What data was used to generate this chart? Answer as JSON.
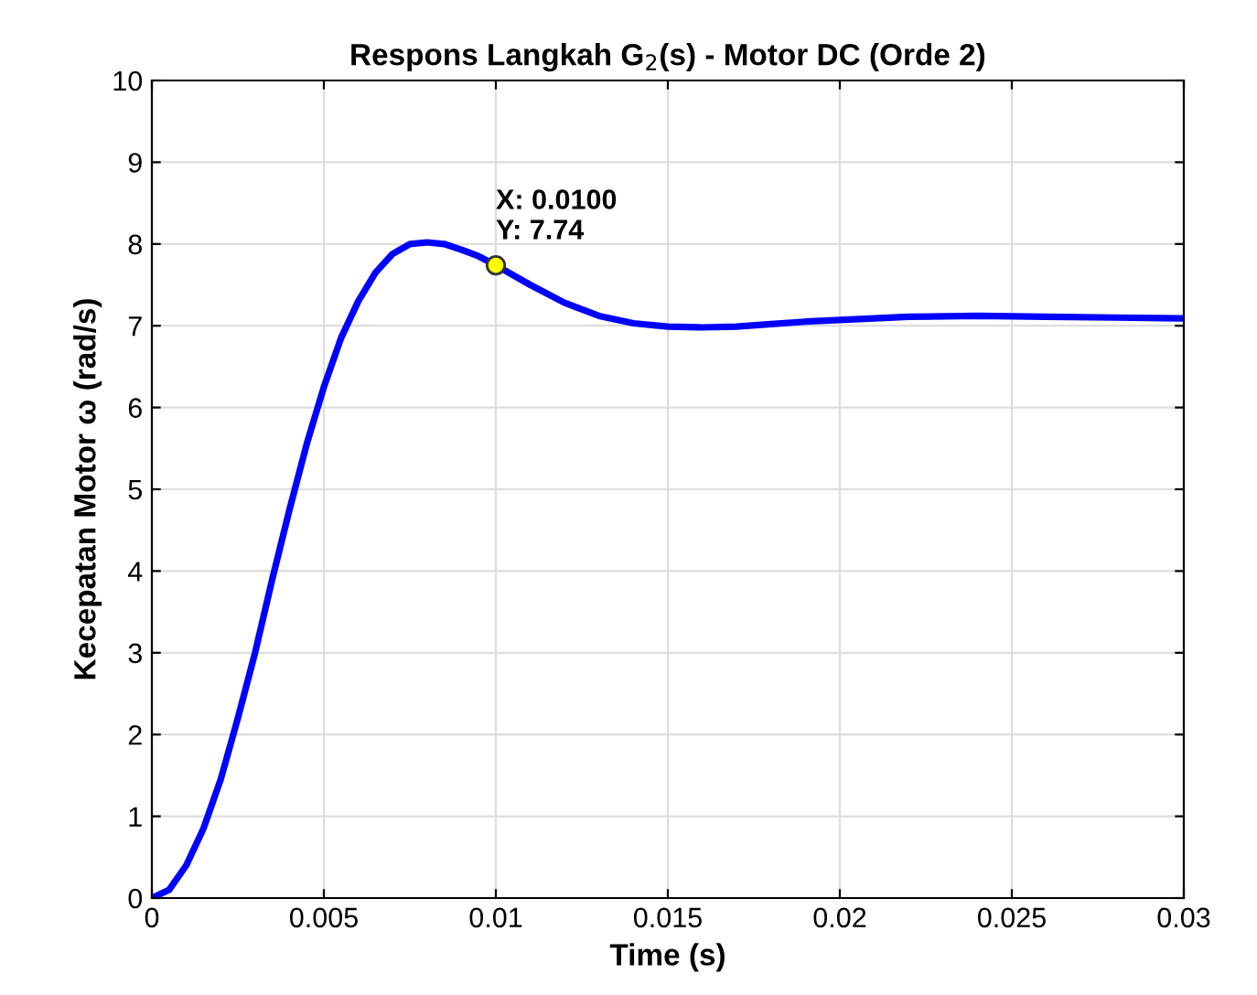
{
  "chart_data": {
    "type": "line",
    "title": "Respons Langkah G$_{2}$(s) - Motor DC (Orde 2)",
    "xlabel": "Time (s)",
    "ylabel": "Kecepatan Motor ω (rad/s)",
    "x": [
      0,
      0.0005,
      0.001,
      0.0015,
      0.002,
      0.0025,
      0.003,
      0.0035,
      0.004,
      0.0045,
      0.005,
      0.0055,
      0.006,
      0.0065,
      0.007,
      0.0075,
      0.008,
      0.0085,
      0.009,
      0.0095,
      0.01,
      0.011,
      0.012,
      0.013,
      0.014,
      0.015,
      0.016,
      0.017,
      0.018,
      0.019,
      0.02,
      0.022,
      0.024,
      0.026,
      0.028,
      0.03
    ],
    "series": [
      {
        "color": "#0000ff",
        "values": [
          0,
          0.1,
          0.4,
          0.85,
          1.45,
          2.2,
          3.0,
          3.9,
          4.75,
          5.55,
          6.25,
          6.85,
          7.3,
          7.65,
          7.88,
          8.0,
          8.02,
          8.0,
          7.93,
          7.85,
          7.74,
          7.5,
          7.28,
          7.12,
          7.03,
          6.99,
          6.98,
          6.99,
          7.02,
          7.05,
          7.07,
          7.11,
          7.12,
          7.11,
          7.1,
          7.09
        ]
      }
    ],
    "xlim": [
      0,
      0.03
    ],
    "ylim": [
      0,
      10
    ],
    "xticks": [
      0,
      0.005,
      0.01,
      0.015,
      0.02,
      0.025,
      0.03
    ],
    "yticks": [
      0,
      1,
      2,
      3,
      4,
      5,
      6,
      7,
      8,
      9,
      10
    ],
    "grid": true,
    "marker": "none",
    "line_style": "solid",
    "annotations": [
      {
        "text": "X: 0.0100\nY: 7.74",
        "x": 0.01,
        "y": 7.74
      }
    ]
  }
}
